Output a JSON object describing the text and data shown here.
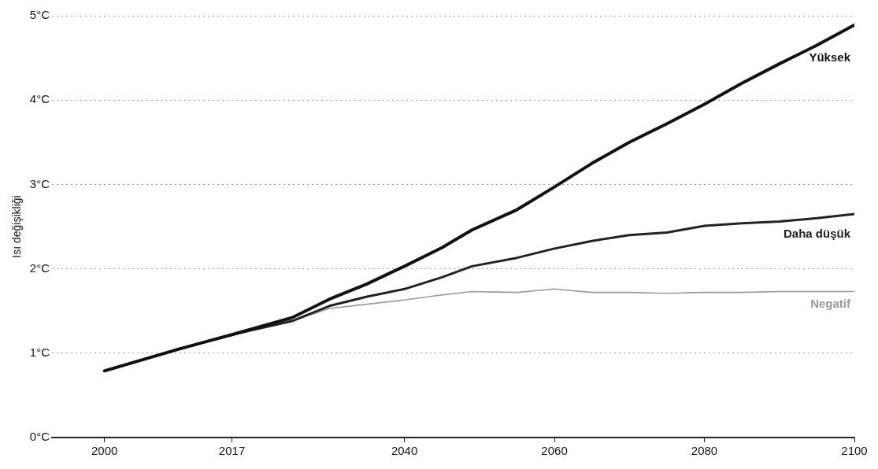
{
  "chart_data": {
    "type": "line",
    "ylabel": "Isı değişikliği",
    "x": [
      2000,
      2005,
      2010,
      2017,
      2025,
      2030,
      2035,
      2040,
      2045,
      2049,
      2055,
      2060,
      2065,
      2070,
      2075,
      2080,
      2085,
      2090,
      2095,
      2100
    ],
    "series": [
      {
        "name": "Yüksek",
        "color": "#111111",
        "values": [
          0.79,
          0.92,
          1.05,
          1.22,
          1.42,
          1.64,
          1.82,
          2.03,
          2.25,
          2.46,
          2.7,
          2.97,
          3.25,
          3.5,
          3.72,
          3.95,
          4.2,
          4.43,
          4.65,
          4.89
        ]
      },
      {
        "name": "Daha düşük",
        "color": "#222222",
        "values": [
          0.79,
          0.92,
          1.05,
          1.22,
          1.38,
          1.56,
          1.67,
          1.76,
          1.9,
          2.03,
          2.13,
          2.24,
          2.33,
          2.4,
          2.43,
          2.51,
          2.54,
          2.56,
          2.6,
          2.65
        ]
      },
      {
        "name": "Negatif",
        "color": "#9a9a9a",
        "values": [
          0.79,
          0.92,
          1.05,
          1.22,
          1.38,
          1.53,
          1.58,
          1.63,
          1.69,
          1.73,
          1.72,
          1.76,
          1.72,
          1.72,
          1.71,
          1.72,
          1.72,
          1.73,
          1.73,
          1.73
        ]
      }
    ],
    "xlim": [
      1993,
      2100
    ],
    "xticks": [
      2000,
      2017,
      2040,
      2060,
      2080,
      2100
    ],
    "ylim": [
      0,
      5
    ],
    "yticks": [
      {
        "value": 0,
        "label": "0°C"
      },
      {
        "value": 1,
        "label": "1°C"
      },
      {
        "value": 2,
        "label": "2°C"
      },
      {
        "value": 3,
        "label": "3°C"
      },
      {
        "value": 4,
        "label": "4°C"
      },
      {
        "value": 5,
        "label": "5°C"
      }
    ],
    "grid": "y",
    "legend": false,
    "marker": "none",
    "line_style": "solid"
  }
}
